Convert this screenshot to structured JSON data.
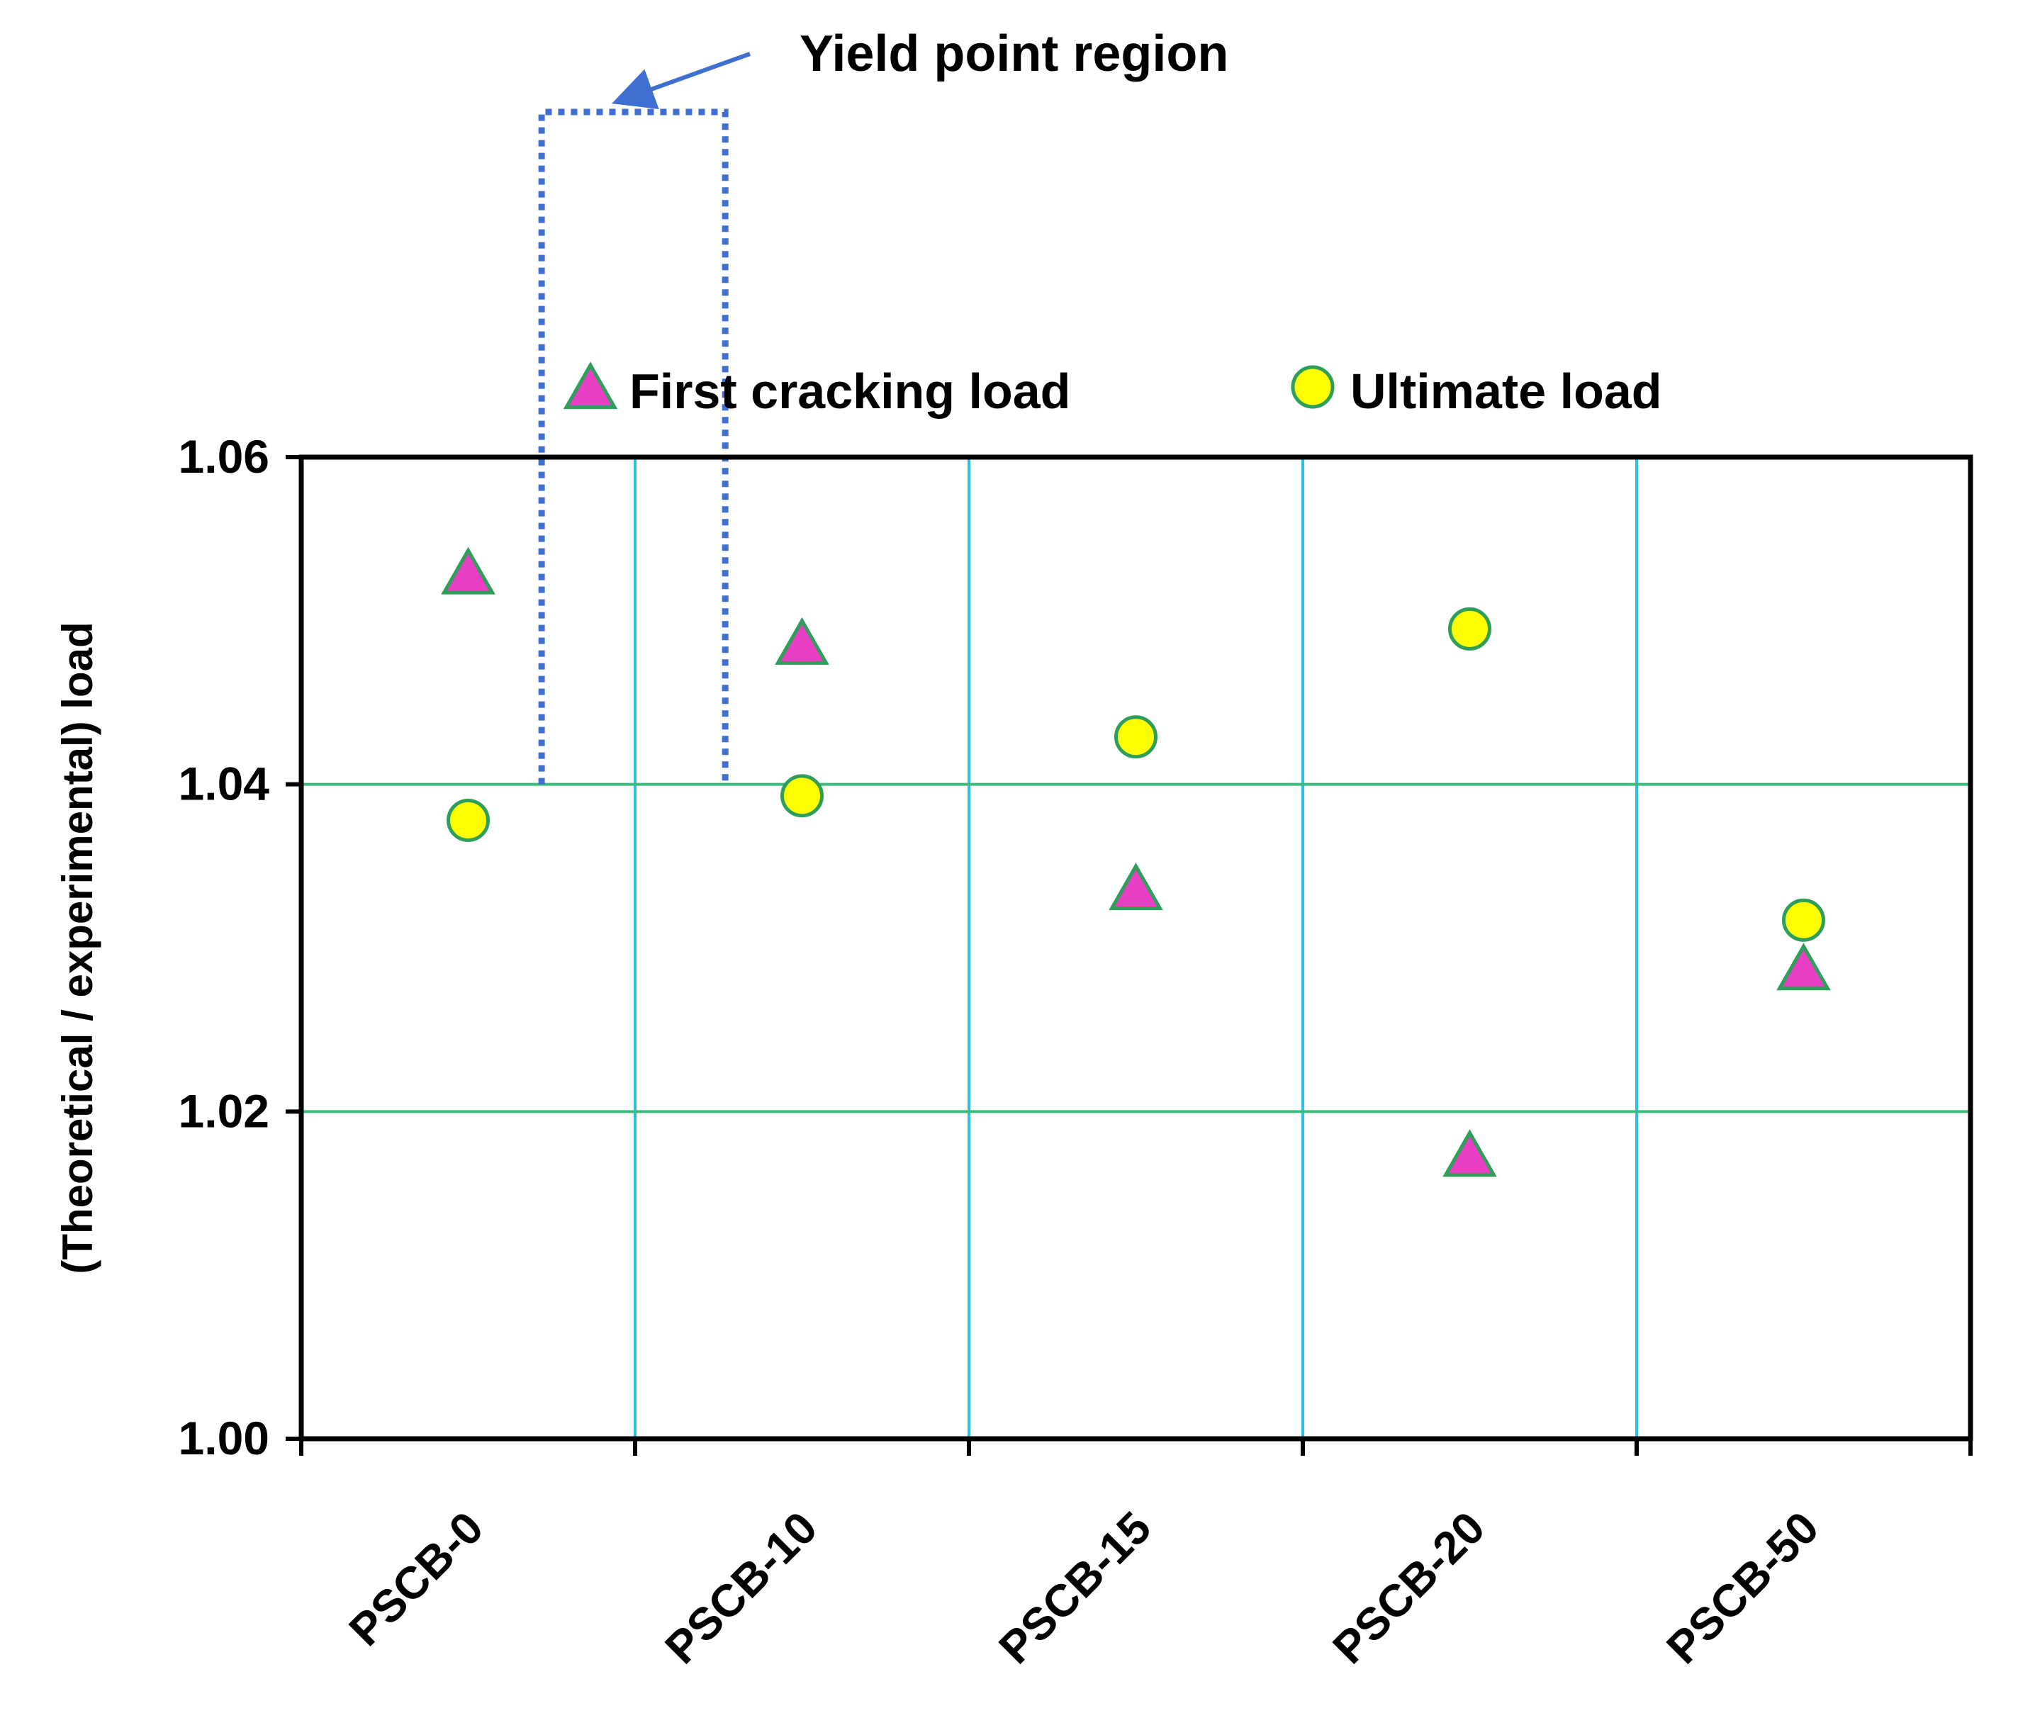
{
  "chart_data": {
    "type": "scatter",
    "title": "",
    "xlabel": "",
    "ylabel": "(Theoretical / experimental) load",
    "categories": [
      "PSCB-0",
      "PSCB-10",
      "PSCB-15",
      "PSCB-20",
      "PSCB-50"
    ],
    "ylim": [
      1.0,
      1.06
    ],
    "yticks": [
      "1.00",
      "1.02",
      "1.04",
      "1.06"
    ],
    "series": [
      {
        "name": "First cracking load",
        "marker": "triangle",
        "values": [
          1.0527,
          1.0484,
          1.0334,
          1.0171,
          1.0285
        ]
      },
      {
        "name": "Ultimate load",
        "marker": "circle",
        "values": [
          1.0378,
          1.0393,
          1.0429,
          1.0495,
          1.0317
        ]
      }
    ],
    "annotation": {
      "text": "Yield point region",
      "y_range": [
        1.04,
        1.06
      ],
      "x_between": [
        "PSCB-0",
        "PSCB-10"
      ]
    },
    "grid": true,
    "legend_position": "top"
  },
  "colors": {
    "triangle_fill": "#e83fc4",
    "circle_fill": "#ffff00",
    "marker_stroke": "#2e9e5a",
    "vertical_grid": "#2cc1e2",
    "horizontal_grid": "#3dbb7a",
    "annotation": "#3f6fd0",
    "axis": "#000000"
  }
}
